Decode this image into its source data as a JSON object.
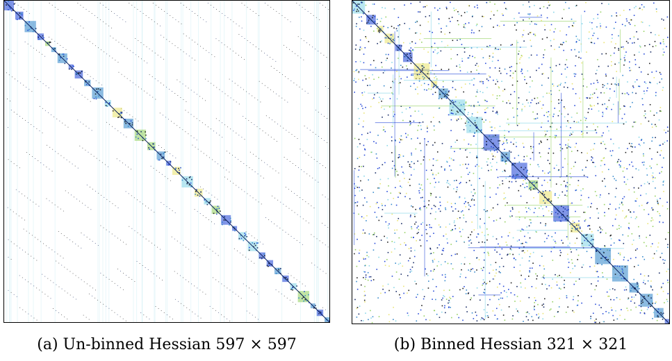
{
  "figure": {
    "panels": [
      {
        "label": "(a)",
        "caption": "Un-binned Hessian 597 × 597",
        "matrix_size": 597
      },
      {
        "label": "(b)",
        "caption": "Binned Hessian 321 × 321",
        "matrix_size": 321
      }
    ],
    "palette": {
      "dark": "#0b1f5c",
      "blue": "#1a3fd6",
      "mid": "#2b83c9",
      "cyan": "#7fd3e6",
      "green": "#8fcf5a",
      "yellow": "#e9e36b",
      "black": "#111111"
    }
  }
}
